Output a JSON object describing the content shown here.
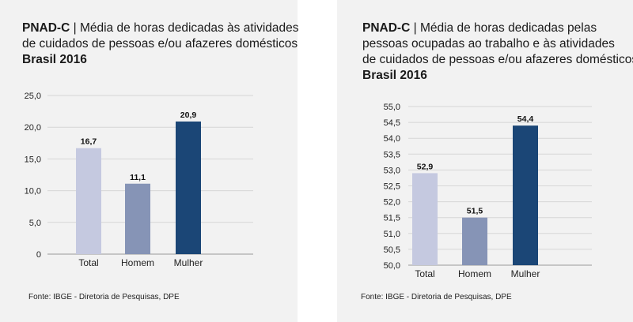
{
  "chart_data": [
    {
      "type": "bar",
      "title_prefix": "PNAD-C",
      "title_separator": "|",
      "title_lines": [
        "Média de horas dedicadas às atividades",
        "de cuidados de pessoas e/ou afazeres domésticos"
      ],
      "subtitle": "Brasil 2016",
      "categories": [
        "Total",
        "Homem",
        "Mulher"
      ],
      "values": [
        16.7,
        11.1,
        20.9
      ],
      "value_labels": [
        "16,7",
        "11,1",
        "20,9"
      ],
      "colors": [
        "#c5c9e0",
        "#8694b6",
        "#1b4676"
      ],
      "ylim": [
        0,
        25
      ],
      "yticks": [
        0,
        5,
        10,
        15,
        20,
        25
      ],
      "ytick_labels": [
        "0",
        "5,0",
        "10,0",
        "15,0",
        "20,0",
        "25,0"
      ],
      "grid": true,
      "source": "Fonte: IBGE - Diretoria de Pesquisas, DPE"
    },
    {
      "type": "bar",
      "title_prefix": "PNAD-C",
      "title_separator": "|",
      "title_lines": [
        "Média de horas dedicadas pelas",
        "pessoas ocupadas ao trabalho e às atividades",
        "de cuidados de pessoas e/ou afazeres domésticos"
      ],
      "subtitle": "Brasil 2016",
      "categories": [
        "Total",
        "Homem",
        "Mulher"
      ],
      "values": [
        52.9,
        51.5,
        54.4
      ],
      "value_labels": [
        "52,9",
        "51,5",
        "54,4"
      ],
      "colors": [
        "#c5c9e0",
        "#8694b6",
        "#1b4676"
      ],
      "ylim": [
        50,
        55
      ],
      "yticks": [
        50,
        50.5,
        51,
        51.5,
        52,
        52.5,
        53,
        53.5,
        54,
        54.5,
        55
      ],
      "ytick_labels": [
        "50,0",
        "50,5",
        "51,0",
        "51,5",
        "52,0",
        "52,5",
        "53,0",
        "53,5",
        "54,0",
        "54,5",
        "55,0"
      ],
      "grid": true,
      "source": "Fonte: IBGE - Diretoria de Pesquisas, DPE"
    }
  ]
}
